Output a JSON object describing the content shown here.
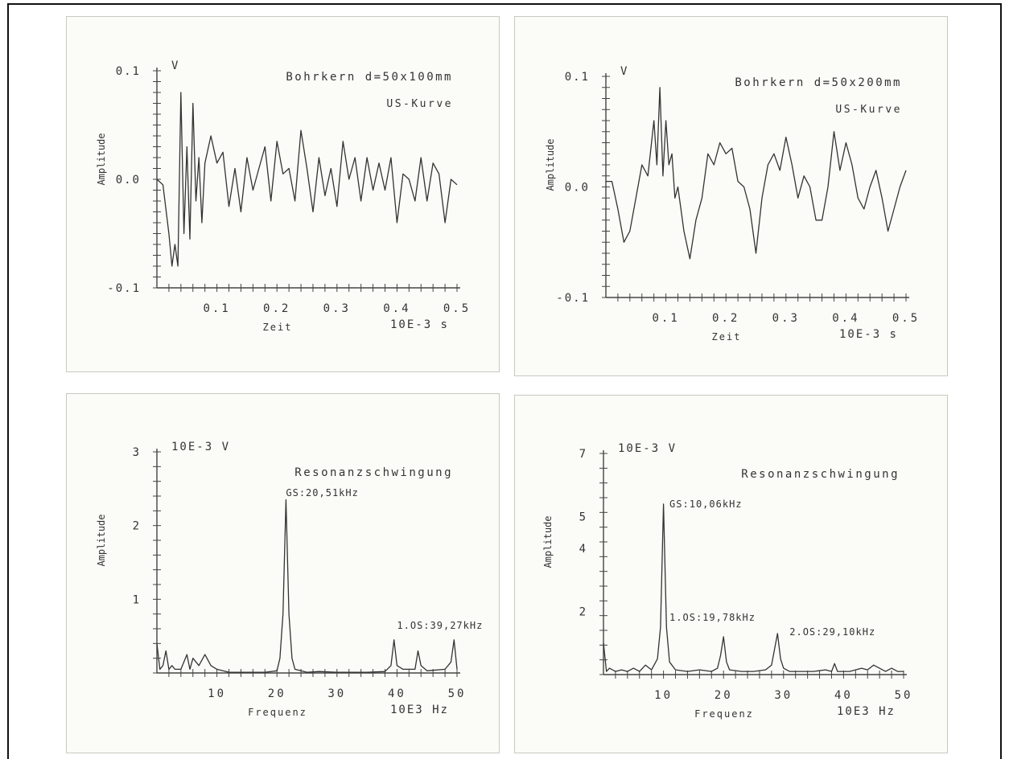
{
  "chart_data": [
    {
      "type": "line",
      "title": "Bohrkern d=50x100mm",
      "subtitle": "US-Kurve",
      "xlabel": "Zeit",
      "xunit": "10E-3 s",
      "ylabel": "Amplitude",
      "yunit": "V",
      "xlim": [
        0,
        0.5
      ],
      "ylim": [
        -0.1,
        0.1
      ],
      "xticks": [
        "0.1",
        "0.2",
        "0.3",
        "0.4",
        "0.5"
      ],
      "yticks": [
        "-0.1",
        "0.0",
        "0.1"
      ],
      "grid": false,
      "series": [
        {
          "x": [
            0,
            0.01,
            0.02,
            0.025,
            0.03,
            0.035,
            0.04,
            0.045,
            0.05,
            0.055,
            0.06,
            0.065,
            0.07,
            0.075,
            0.08,
            0.09,
            0.1,
            0.11,
            0.12,
            0.13,
            0.14,
            0.15,
            0.16,
            0.17,
            0.18,
            0.19,
            0.2,
            0.21,
            0.22,
            0.23,
            0.24,
            0.25,
            0.26,
            0.27,
            0.28,
            0.29,
            0.3,
            0.31,
            0.32,
            0.33,
            0.34,
            0.35,
            0.36,
            0.37,
            0.38,
            0.39,
            0.4,
            0.41,
            0.42,
            0.43,
            0.44,
            0.45,
            0.46,
            0.47,
            0.48,
            0.49,
            0.5
          ],
          "y": [
            0.0,
            -0.005,
            -0.05,
            -0.08,
            -0.06,
            -0.08,
            0.08,
            -0.05,
            0.03,
            -0.055,
            0.07,
            -0.02,
            0.02,
            -0.04,
            0.015,
            0.04,
            0.015,
            0.025,
            -0.025,
            0.01,
            -0.03,
            0.02,
            -0.01,
            0.01,
            0.03,
            -0.02,
            0.035,
            0.005,
            0.01,
            -0.02,
            0.045,
            0.01,
            -0.03,
            0.02,
            -0.015,
            0.01,
            -0.025,
            0.035,
            0.0,
            0.02,
            -0.02,
            0.02,
            -0.01,
            0.015,
            -0.01,
            0.02,
            -0.04,
            0.005,
            0.0,
            -0.02,
            0.02,
            -0.02,
            0.015,
            0.005,
            -0.04,
            0.0,
            -0.005
          ]
        }
      ]
    },
    {
      "type": "line",
      "title": "Bohrkern d=50x200mm",
      "subtitle": "US-Kurve",
      "xlabel": "Zeit",
      "xunit": "10E-3 s",
      "ylabel": "Amplitude",
      "yunit": "V",
      "xlim": [
        0,
        0.5
      ],
      "ylim": [
        -0.1,
        0.1
      ],
      "xticks": [
        "0.1",
        "0.2",
        "0.3",
        "0.4",
        "0.5"
      ],
      "yticks": [
        "-0.1",
        "0.0",
        "0.1"
      ],
      "grid": false,
      "series": [
        {
          "x": [
            0,
            0.01,
            0.02,
            0.03,
            0.04,
            0.05,
            0.06,
            0.07,
            0.08,
            0.085,
            0.09,
            0.095,
            0.1,
            0.105,
            0.11,
            0.115,
            0.12,
            0.13,
            0.14,
            0.15,
            0.16,
            0.17,
            0.18,
            0.19,
            0.2,
            0.21,
            0.22,
            0.23,
            0.24,
            0.25,
            0.26,
            0.27,
            0.28,
            0.29,
            0.3,
            0.31,
            0.32,
            0.33,
            0.34,
            0.35,
            0.36,
            0.37,
            0.38,
            0.39,
            0.4,
            0.41,
            0.42,
            0.43,
            0.44,
            0.45,
            0.46,
            0.47,
            0.48,
            0.49,
            0.5
          ],
          "y": [
            0.005,
            0.005,
            -0.02,
            -0.05,
            -0.04,
            -0.01,
            0.02,
            0.01,
            0.06,
            0.02,
            0.09,
            0.01,
            0.06,
            0.02,
            0.03,
            -0.01,
            0.0,
            -0.04,
            -0.065,
            -0.03,
            -0.01,
            0.03,
            0.02,
            0.04,
            0.03,
            0.035,
            0.005,
            0.0,
            -0.02,
            -0.06,
            -0.01,
            0.02,
            0.03,
            0.015,
            0.045,
            0.02,
            -0.01,
            0.01,
            0.0,
            -0.03,
            -0.03,
            0.0,
            0.05,
            0.015,
            0.04,
            0.02,
            -0.01,
            -0.02,
            0.0,
            0.015,
            -0.01,
            -0.04,
            -0.02,
            0.0,
            0.015
          ]
        }
      ]
    },
    {
      "type": "line",
      "title": "Resonanzschwingung",
      "xlabel": "Frequenz",
      "xunit": "10E3 Hz",
      "ylabel": "Amplitude",
      "yunit": "10E-3 V",
      "xlim": [
        0,
        50
      ],
      "ylim": [
        0,
        3
      ],
      "xticks": [
        "10",
        "20",
        "30",
        "40",
        "50"
      ],
      "yticks": [
        "1",
        "2",
        "3"
      ],
      "grid": false,
      "annotations": [
        {
          "text": "GS:20,51kHz",
          "x": 21.5,
          "y": 2.4
        },
        {
          "text": "1.OS:39,27kHz",
          "x": 40,
          "y": 0.6
        }
      ],
      "series": [
        {
          "x": [
            0,
            0.5,
            1,
            1.5,
            2,
            2.5,
            3,
            4,
            5,
            5.5,
            6,
            7,
            8,
            9,
            10,
            12,
            15,
            18,
            20,
            20.5,
            21,
            21.5,
            22,
            22.5,
            23,
            25,
            27,
            30,
            35,
            38,
            39,
            39.5,
            40,
            41,
            43,
            43.5,
            44,
            45,
            48,
            49,
            49.5,
            50
          ],
          "y": [
            0.4,
            0.05,
            0.1,
            0.3,
            0.05,
            0.1,
            0.05,
            0.05,
            0.25,
            0.05,
            0.2,
            0.1,
            0.25,
            0.1,
            0.05,
            0.01,
            0.01,
            0.01,
            0.03,
            0.2,
            0.8,
            2.35,
            0.8,
            0.2,
            0.05,
            0.01,
            0.02,
            0.01,
            0.01,
            0.02,
            0.1,
            0.45,
            0.1,
            0.05,
            0.05,
            0.3,
            0.1,
            0.03,
            0.05,
            0.15,
            0.45,
            0.05
          ]
        }
      ]
    },
    {
      "type": "line",
      "title": "Resonanzschwingung",
      "xlabel": "Frequenz",
      "xunit": "10E3 Hz",
      "ylabel": "Amplitude",
      "yunit": "10E-3 V",
      "xlim": [
        0,
        50
      ],
      "ylim": [
        0,
        7
      ],
      "xticks": [
        "10",
        "20",
        "30",
        "40",
        "50"
      ],
      "yticks": [
        "2",
        "4",
        "5",
        "7"
      ],
      "grid": false,
      "annotations": [
        {
          "text": "GS:10,06kHz",
          "x": 11,
          "y": 5.3
        },
        {
          "text": "1.OS:19,78kHz",
          "x": 11,
          "y": 1.7
        },
        {
          "text": "2.OS:29,10kHz",
          "x": 31,
          "y": 1.25
        }
      ],
      "series": [
        {
          "x": [
            0,
            0.5,
            1,
            2,
            3,
            4,
            5,
            6,
            7,
            8,
            9,
            9.5,
            10,
            10.5,
            11,
            12,
            14,
            16,
            18,
            19,
            19.5,
            20,
            20.5,
            21,
            23,
            25,
            27,
            28,
            29,
            29.5,
            30,
            31,
            33,
            35,
            37,
            38,
            38.5,
            39,
            41,
            43,
            44,
            45,
            47,
            48,
            49,
            50
          ],
          "y": [
            1.0,
            0.1,
            0.2,
            0.1,
            0.15,
            0.1,
            0.2,
            0.1,
            0.3,
            0.15,
            0.5,
            1.5,
            5.4,
            1.5,
            0.4,
            0.15,
            0.1,
            0.15,
            0.1,
            0.2,
            0.6,
            1.2,
            0.4,
            0.15,
            0.1,
            0.1,
            0.15,
            0.3,
            1.3,
            0.5,
            0.2,
            0.1,
            0.1,
            0.1,
            0.15,
            0.1,
            0.35,
            0.1,
            0.1,
            0.2,
            0.15,
            0.3,
            0.1,
            0.2,
            0.1,
            0.1
          ]
        }
      ]
    }
  ]
}
